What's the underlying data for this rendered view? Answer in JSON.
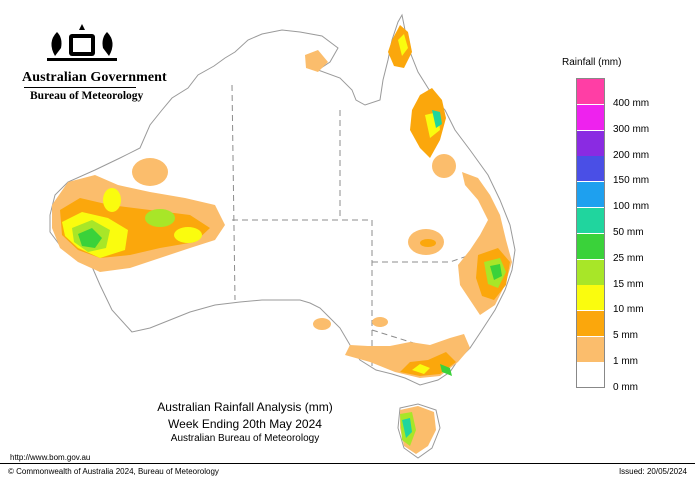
{
  "header": {
    "government": "Australian Government",
    "agency": "Bureau of Meteorology"
  },
  "title": {
    "line1": "Australian Rainfall Analysis (mm)",
    "line2": "Week Ending 20th May 2024",
    "line3": "Australian Bureau of Meteorology"
  },
  "legend": {
    "title": "Rainfall (mm)",
    "items": [
      {
        "label": "400 mm",
        "color": "#ff3ea5"
      },
      {
        "label": "300 mm",
        "color": "#ee22ee"
      },
      {
        "label": "200 mm",
        "color": "#8a2be2"
      },
      {
        "label": "150 mm",
        "color": "#4a4fe6"
      },
      {
        "label": "100 mm",
        "color": "#1ea0ef"
      },
      {
        "label": "50 mm",
        "color": "#20d59e"
      },
      {
        "label": "25 mm",
        "color": "#3ad23a"
      },
      {
        "label": "15 mm",
        "color": "#a8e628"
      },
      {
        "label": "10 mm",
        "color": "#fafc0e"
      },
      {
        "label": "5 mm",
        "color": "#fba70c"
      },
      {
        "label": "1 mm",
        "color": "#fbbd6c"
      },
      {
        "label": "0 mm",
        "color": "#ffffff"
      }
    ]
  },
  "footer": {
    "url": "http://www.bom.gov.au",
    "copyright": "© Commonwealth of Australia 2024, Bureau of Meteorology",
    "issued": "Issued: 20/05/2024"
  }
}
